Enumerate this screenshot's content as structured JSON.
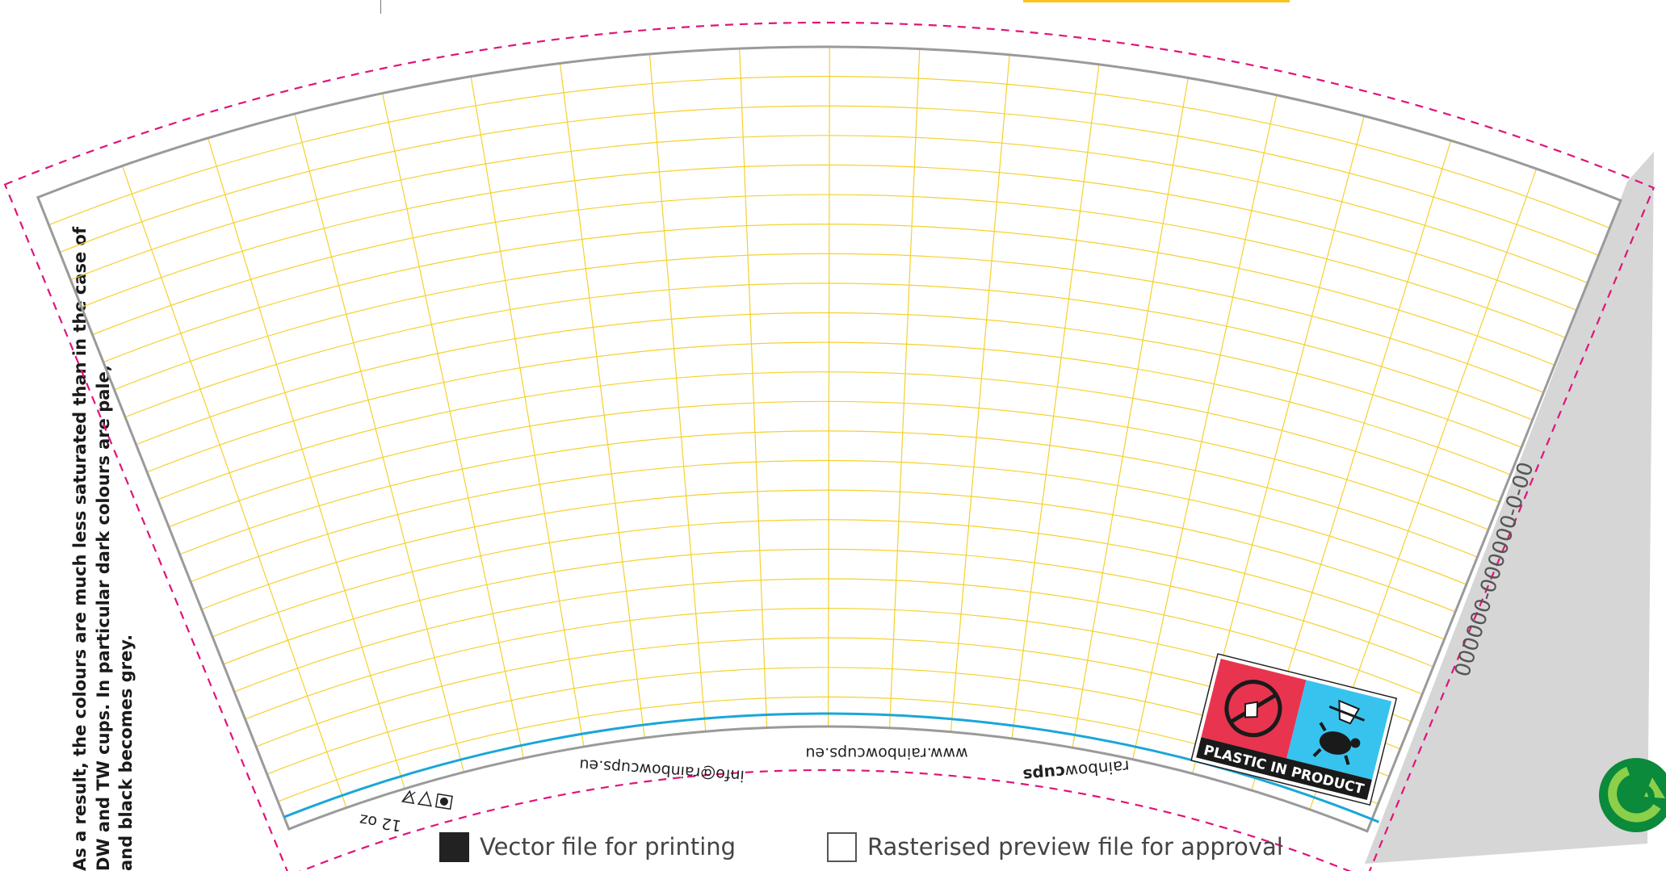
{
  "side_note": {
    "line1": "As a result, the colours are much less saturated than in the case of",
    "line2": "DW and TW cups. In particular dark colours are pale,",
    "line3": "and black becomes grey."
  },
  "cup": {
    "reference_code": "000000-000000-0-00",
    "texts": {
      "size": "12 oz",
      "email": "info@rainbowcups.eu",
      "website": "www.rainbowcups.eu",
      "brand_light": "rainbow",
      "brand_bold": "cups"
    },
    "badge": {
      "label": "PLASTIC IN PRODUCT",
      "left_color": "#e8344e",
      "right_color": "#38c3ee"
    }
  },
  "legend": {
    "vector_label": "Vector file for printing",
    "raster_label": "Rasterised preview file for approval"
  },
  "colors": {
    "dieline": "#e0147a",
    "outline": "#9a9a9a",
    "grid": "#f5d02f",
    "accent_line": "#1aa6d8",
    "bleed_strip": "#d6d6d6",
    "top_bar": "#fbc31a",
    "recycle": "#0a8a3a"
  },
  "icons": [
    "recycle-icon",
    "no-plastic-icon",
    "turtle-icon",
    "care-icons"
  ]
}
